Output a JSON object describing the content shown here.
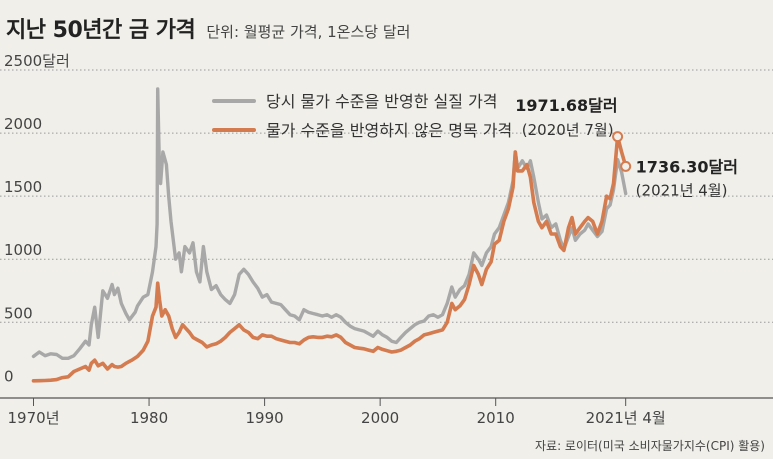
{
  "title": "지난 50년간 금 가격",
  "subtitle": "단위: 월평균 가격, 1온스당 달러",
  "source": "자료: 로이터(미국 소비자물가지수(CPI) 활용)",
  "colors": {
    "real": "#a8a8a8",
    "nominal": "#d47b4f",
    "background": "#f0efe9"
  },
  "chart_data": {
    "type": "line",
    "title": "지난 50년간 금 가격",
    "xlabel": "",
    "ylabel": "",
    "x_ticks": [
      {
        "x": 1970,
        "label": "1970년"
      },
      {
        "x": 1980,
        "label": "1980"
      },
      {
        "x": 1990,
        "label": "1990"
      },
      {
        "x": 2000,
        "label": "2000"
      },
      {
        "x": 2010,
        "label": "2010"
      },
      {
        "x": 2021.25,
        "label": "2021년 4월"
      }
    ],
    "y_ticks": [
      {
        "y": 0,
        "label": "0"
      },
      {
        "y": 500,
        "label": "500"
      },
      {
        "y": 1000,
        "label": "1000"
      },
      {
        "y": 1500,
        "label": "1500"
      },
      {
        "y": 2000,
        "label": "2000"
      },
      {
        "y": 2500,
        "label": "2500달러"
      }
    ],
    "xlim": [
      1967.1,
      2034
    ],
    "ylim": [
      -100,
      2500
    ],
    "grid": true,
    "legend": "top-center",
    "series": [
      {
        "name": "당시 물가 수준을 반영한 실질 가격",
        "color": "#a8a8a8",
        "points": [
          [
            1970.0,
            230
          ],
          [
            1970.5,
            265
          ],
          [
            1971.0,
            235
          ],
          [
            1971.5,
            250
          ],
          [
            1972.0,
            245
          ],
          [
            1972.5,
            215
          ],
          [
            1973.0,
            215
          ],
          [
            1973.5,
            235
          ],
          [
            1974.0,
            290
          ],
          [
            1974.5,
            350
          ],
          [
            1974.8,
            320
          ],
          [
            1975.0,
            480
          ],
          [
            1975.3,
            620
          ],
          [
            1975.6,
            380
          ],
          [
            1976.0,
            750
          ],
          [
            1976.4,
            690
          ],
          [
            1976.8,
            800
          ],
          [
            1977.0,
            720
          ],
          [
            1977.3,
            770
          ],
          [
            1977.6,
            650
          ],
          [
            1978.0,
            570
          ],
          [
            1978.3,
            520
          ],
          [
            1978.8,
            580
          ],
          [
            1979.0,
            630
          ],
          [
            1979.5,
            700
          ],
          [
            1979.9,
            720
          ],
          [
            1980.3,
            900
          ],
          [
            1980.6,
            1100
          ],
          [
            1980.7,
            1280
          ],
          [
            1980.75,
            2350
          ],
          [
            1980.9,
            1700
          ],
          [
            1981.0,
            1600
          ],
          [
            1981.2,
            1850
          ],
          [
            1981.5,
            1750
          ],
          [
            1981.7,
            1500
          ],
          [
            1981.9,
            1300
          ],
          [
            1982.3,
            1000
          ],
          [
            1982.6,
            1050
          ],
          [
            1982.8,
            900
          ],
          [
            1983.1,
            1100
          ],
          [
            1983.5,
            1050
          ],
          [
            1983.8,
            1130
          ],
          [
            1984.1,
            900
          ],
          [
            1984.4,
            820
          ],
          [
            1984.7,
            1100
          ],
          [
            1985.0,
            900
          ],
          [
            1985.4,
            760
          ],
          [
            1985.8,
            790
          ],
          [
            1986.2,
            720
          ],
          [
            1986.6,
            680
          ],
          [
            1987.0,
            650
          ],
          [
            1987.4,
            720
          ],
          [
            1987.8,
            880
          ],
          [
            1988.2,
            920
          ],
          [
            1988.6,
            880
          ],
          [
            1989.0,
            820
          ],
          [
            1989.4,
            770
          ],
          [
            1989.8,
            700
          ],
          [
            1990.2,
            720
          ],
          [
            1990.6,
            660
          ],
          [
            1991.0,
            650
          ],
          [
            1991.4,
            640
          ],
          [
            1991.8,
            600
          ],
          [
            1992.2,
            560
          ],
          [
            1992.6,
            550
          ],
          [
            1993.0,
            520
          ],
          [
            1993.4,
            600
          ],
          [
            1993.8,
            580
          ],
          [
            1994.2,
            570
          ],
          [
            1994.6,
            560
          ],
          [
            1995.0,
            550
          ],
          [
            1995.4,
            560
          ],
          [
            1995.8,
            540
          ],
          [
            1996.2,
            560
          ],
          [
            1996.6,
            540
          ],
          [
            1997.0,
            500
          ],
          [
            1997.4,
            470
          ],
          [
            1997.8,
            450
          ],
          [
            1998.2,
            440
          ],
          [
            1998.6,
            430
          ],
          [
            1999.0,
            410
          ],
          [
            1999.4,
            390
          ],
          [
            1999.8,
            430
          ],
          [
            2000.2,
            400
          ],
          [
            2000.6,
            380
          ],
          [
            2001.0,
            350
          ],
          [
            2001.4,
            340
          ],
          [
            2001.8,
            380
          ],
          [
            2002.2,
            420
          ],
          [
            2002.6,
            450
          ],
          [
            2003.0,
            480
          ],
          [
            2003.4,
            500
          ],
          [
            2003.8,
            510
          ],
          [
            2004.2,
            550
          ],
          [
            2004.6,
            560
          ],
          [
            2005.0,
            540
          ],
          [
            2005.4,
            560
          ],
          [
            2005.8,
            650
          ],
          [
            2006.2,
            780
          ],
          [
            2006.5,
            700
          ],
          [
            2006.9,
            760
          ],
          [
            2007.3,
            790
          ],
          [
            2007.7,
            880
          ],
          [
            2008.1,
            1050
          ],
          [
            2008.5,
            1000
          ],
          [
            2008.8,
            950
          ],
          [
            2009.2,
            1050
          ],
          [
            2009.6,
            1100
          ],
          [
            2009.9,
            1200
          ],
          [
            2010.3,
            1250
          ],
          [
            2010.7,
            1350
          ],
          [
            2011.1,
            1450
          ],
          [
            2011.5,
            1620
          ],
          [
            2011.7,
            1850
          ],
          [
            2011.9,
            1720
          ],
          [
            2012.3,
            1780
          ],
          [
            2012.7,
            1720
          ],
          [
            2013.0,
            1780
          ],
          [
            2013.3,
            1650
          ],
          [
            2013.7,
            1450
          ],
          [
            2014.0,
            1320
          ],
          [
            2014.4,
            1350
          ],
          [
            2014.8,
            1250
          ],
          [
            2015.2,
            1280
          ],
          [
            2015.6,
            1150
          ],
          [
            2015.9,
            1080
          ],
          [
            2016.3,
            1180
          ],
          [
            2016.6,
            1250
          ],
          [
            2016.9,
            1150
          ],
          [
            2017.3,
            1200
          ],
          [
            2017.7,
            1230
          ],
          [
            2018.0,
            1280
          ],
          [
            2018.4,
            1230
          ],
          [
            2018.8,
            1180
          ],
          [
            2019.2,
            1220
          ],
          [
            2019.6,
            1400
          ],
          [
            2019.9,
            1430
          ],
          [
            2020.2,
            1550
          ],
          [
            2020.55,
            1790
          ],
          [
            2020.9,
            1690
          ],
          [
            2021.25,
            1520
          ]
        ]
      },
      {
        "name": "물가 수준을 반영하지 않은 명목 가격",
        "color": "#d47b4f",
        "points": [
          [
            1970.0,
            36
          ],
          [
            1970.5,
            37
          ],
          [
            1971.0,
            39
          ],
          [
            1971.5,
            41
          ],
          [
            1972.0,
            46
          ],
          [
            1972.5,
            62
          ],
          [
            1973.0,
            68
          ],
          [
            1973.5,
            110
          ],
          [
            1974.0,
            130
          ],
          [
            1974.5,
            150
          ],
          [
            1974.8,
            120
          ],
          [
            1975.0,
            175
          ],
          [
            1975.3,
            200
          ],
          [
            1975.6,
            155
          ],
          [
            1976.0,
            175
          ],
          [
            1976.4,
            130
          ],
          [
            1976.8,
            165
          ],
          [
            1977.0,
            150
          ],
          [
            1977.3,
            145
          ],
          [
            1977.6,
            150
          ],
          [
            1978.0,
            175
          ],
          [
            1978.5,
            200
          ],
          [
            1979.0,
            230
          ],
          [
            1979.5,
            280
          ],
          [
            1979.9,
            350
          ],
          [
            1980.3,
            550
          ],
          [
            1980.6,
            620
          ],
          [
            1980.75,
            810
          ],
          [
            1980.9,
            680
          ],
          [
            1981.1,
            550
          ],
          [
            1981.4,
            600
          ],
          [
            1981.7,
            550
          ],
          [
            1982.0,
            450
          ],
          [
            1982.3,
            380
          ],
          [
            1982.6,
            420
          ],
          [
            1982.9,
            480
          ],
          [
            1983.2,
            450
          ],
          [
            1983.5,
            420
          ],
          [
            1983.8,
            380
          ],
          [
            1984.2,
            360
          ],
          [
            1984.6,
            340
          ],
          [
            1985.0,
            305
          ],
          [
            1985.4,
            320
          ],
          [
            1985.8,
            330
          ],
          [
            1986.2,
            350
          ],
          [
            1986.6,
            380
          ],
          [
            1987.0,
            420
          ],
          [
            1987.4,
            450
          ],
          [
            1987.8,
            480
          ],
          [
            1988.2,
            440
          ],
          [
            1988.6,
            420
          ],
          [
            1989.0,
            380
          ],
          [
            1989.4,
            370
          ],
          [
            1989.8,
            400
          ],
          [
            1990.2,
            390
          ],
          [
            1990.6,
            390
          ],
          [
            1991.0,
            370
          ],
          [
            1991.4,
            360
          ],
          [
            1991.8,
            350
          ],
          [
            1992.2,
            340
          ],
          [
            1992.6,
            340
          ],
          [
            1993.0,
            330
          ],
          [
            1993.4,
            360
          ],
          [
            1993.8,
            380
          ],
          [
            1994.2,
            385
          ],
          [
            1994.6,
            380
          ],
          [
            1995.0,
            380
          ],
          [
            1995.4,
            390
          ],
          [
            1995.8,
            385
          ],
          [
            1996.2,
            400
          ],
          [
            1996.6,
            380
          ],
          [
            1997.0,
            340
          ],
          [
            1997.4,
            320
          ],
          [
            1997.8,
            300
          ],
          [
            1998.2,
            295
          ],
          [
            1998.6,
            290
          ],
          [
            1999.0,
            280
          ],
          [
            1999.4,
            270
          ],
          [
            1999.8,
            300
          ],
          [
            2000.2,
            285
          ],
          [
            2000.6,
            275
          ],
          [
            2001.0,
            265
          ],
          [
            2001.4,
            270
          ],
          [
            2001.8,
            280
          ],
          [
            2002.2,
            300
          ],
          [
            2002.6,
            320
          ],
          [
            2003.0,
            350
          ],
          [
            2003.4,
            370
          ],
          [
            2003.8,
            400
          ],
          [
            2004.2,
            410
          ],
          [
            2004.6,
            420
          ],
          [
            2005.0,
            430
          ],
          [
            2005.4,
            440
          ],
          [
            2005.8,
            500
          ],
          [
            2006.2,
            650
          ],
          [
            2006.5,
            600
          ],
          [
            2006.9,
            630
          ],
          [
            2007.3,
            680
          ],
          [
            2007.7,
            800
          ],
          [
            2008.1,
            950
          ],
          [
            2008.5,
            880
          ],
          [
            2008.8,
            800
          ],
          [
            2009.2,
            920
          ],
          [
            2009.6,
            980
          ],
          [
            2009.9,
            1120
          ],
          [
            2010.3,
            1150
          ],
          [
            2010.7,
            1300
          ],
          [
            2011.1,
            1400
          ],
          [
            2011.5,
            1570
          ],
          [
            2011.7,
            1850
          ],
          [
            2011.9,
            1700
          ],
          [
            2012.3,
            1700
          ],
          [
            2012.7,
            1750
          ],
          [
            2013.0,
            1650
          ],
          [
            2013.3,
            1450
          ],
          [
            2013.7,
            1300
          ],
          [
            2014.0,
            1250
          ],
          [
            2014.4,
            1300
          ],
          [
            2014.8,
            1200
          ],
          [
            2015.2,
            1200
          ],
          [
            2015.6,
            1100
          ],
          [
            2015.9,
            1070
          ],
          [
            2016.3,
            1250
          ],
          [
            2016.6,
            1330
          ],
          [
            2016.9,
            1200
          ],
          [
            2017.3,
            1250
          ],
          [
            2017.7,
            1300
          ],
          [
            2018.0,
            1330
          ],
          [
            2018.4,
            1300
          ],
          [
            2018.8,
            1200
          ],
          [
            2019.2,
            1300
          ],
          [
            2019.6,
            1500
          ],
          [
            2019.9,
            1480
          ],
          [
            2020.2,
            1600
          ],
          [
            2020.55,
            1971.68
          ],
          [
            2020.9,
            1850
          ],
          [
            2021.25,
            1736.3
          ]
        ]
      }
    ],
    "annotations": [
      {
        "x": 2020.55,
        "y": 1971.68,
        "value": "1971.68달러",
        "date": "(2020년 7월)"
      },
      {
        "x": 2021.25,
        "y": 1736.3,
        "value": "1736.30달러",
        "date": "(2021년 4월)"
      }
    ]
  }
}
